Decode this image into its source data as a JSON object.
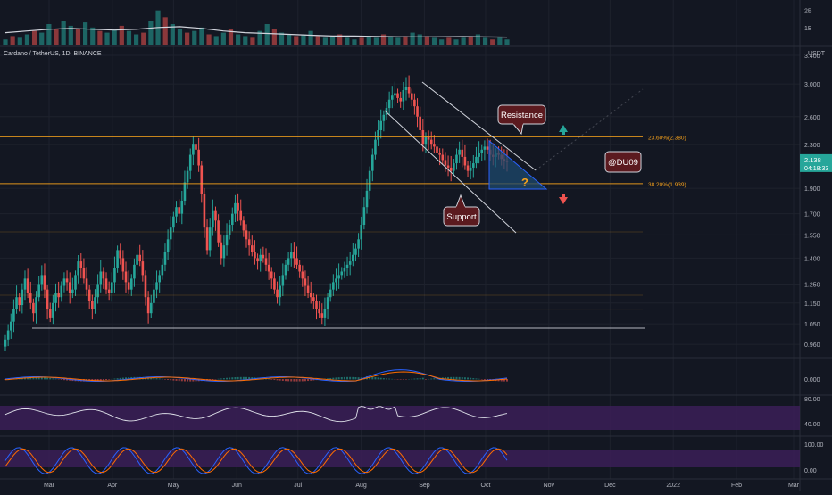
{
  "header": {
    "symbol_title": "Cardano / TetherUS, 1D, BINANCE",
    "currency": "USDT"
  },
  "price_badge": {
    "price": "2.138",
    "countdown": "04:18:33",
    "color": "#26a69a"
  },
  "colors": {
    "up": "#26a69a",
    "down": "#ef5350",
    "fib_line": "#f7a21b",
    "support_line": "#d1d4dc",
    "channel": "#d1d4dc",
    "triangle_fill": "#1e4a6e",
    "triangle_edge": "#2962ff",
    "label_fill": "#5b1a1f",
    "label_border": "#d1d4dc",
    "rsi_band": "#3b1f57",
    "macd_line": "#2962ff",
    "signal_line": "#ff6d00"
  },
  "annotations": {
    "resistance": "Resistance",
    "support": "Support",
    "watermark": "@DU09",
    "question": "?"
  },
  "chart_data": [
    {
      "type": "volume",
      "ticks": [
        "2B",
        "1B"
      ],
      "values_billion": [
        0.3,
        0.5,
        0.4,
        0.6,
        0.8,
        0.7,
        1.2,
        0.9,
        1.4,
        1.1,
        0.9,
        1.3,
        1.0,
        0.8,
        0.7,
        0.9,
        1.1,
        0.8,
        0.6,
        0.7,
        1.4,
        2.0,
        1.6,
        1.2,
        0.9,
        0.7,
        0.8,
        1.0,
        0.6,
        0.5,
        0.7,
        0.9,
        0.6,
        0.5,
        0.4,
        0.8,
        1.2,
        0.9,
        0.7,
        0.6,
        0.5,
        0.6,
        0.8,
        0.5,
        0.4,
        0.5,
        0.6,
        0.4,
        0.3,
        0.4,
        0.5,
        0.4,
        0.6,
        0.5,
        0.4,
        0.5,
        0.7,
        0.6,
        0.5,
        0.4,
        0.3,
        0.4,
        0.3,
        0.4,
        0.5,
        0.6,
        0.4,
        0.3,
        0.4,
        0.3
      ],
      "ma_billion": [
        0.7,
        0.8,
        0.9,
        0.95,
        0.9,
        0.85,
        0.9,
        1.0,
        1.05,
        0.95,
        0.8,
        0.7,
        0.65,
        0.6,
        0.55,
        0.5,
        0.5,
        0.48,
        0.46,
        0.45,
        0.46,
        0.47,
        0.45,
        0.44
      ]
    },
    {
      "type": "candlestick",
      "title": "Cardano / TetherUS, 1D, BINANCE",
      "y_scale": "log",
      "ylim": [
        0.92,
        3.4
      ],
      "y_ticks": [
        "3.400",
        "3.000",
        "2.600",
        "2.300",
        "2.138",
        "1.900",
        "1.700",
        "1.550",
        "1.400",
        "1.250",
        "1.150",
        "1.050",
        "0.960"
      ],
      "y_tick_values": [
        3.4,
        3.0,
        2.6,
        2.3,
        1.9,
        1.7,
        1.55,
        1.4,
        1.25,
        1.15,
        1.05,
        0.96
      ],
      "x_ticks": [
        "Mar",
        "Apr",
        "May",
        "Jun",
        "Jul",
        "Aug",
        "Sep",
        "Oct",
        "Nov",
        "Dec",
        "2022",
        "Feb",
        "Mar"
      ],
      "x_tick_dates": [
        "2021-03-01",
        "2021-04-01",
        "2021-05-01",
        "2021-06-01",
        "2021-07-01",
        "2021-08-01",
        "2021-09-01",
        "2021-10-01",
        "2021-11-01",
        "2021-12-01",
        "2022-01-01",
        "2022-02-01",
        "2022-03-01"
      ],
      "first_candle_date": "2021-02-25",
      "closes": [
        0.98,
        1.02,
        1.06,
        1.12,
        1.18,
        1.14,
        1.22,
        1.28,
        1.2,
        1.15,
        1.1,
        1.18,
        1.25,
        1.3,
        1.22,
        1.12,
        1.08,
        1.15,
        1.2,
        1.18,
        1.24,
        1.28,
        1.26,
        1.2,
        1.22,
        1.3,
        1.38,
        1.34,
        1.28,
        1.22,
        1.16,
        1.12,
        1.18,
        1.25,
        1.32,
        1.28,
        1.22,
        1.2,
        1.26,
        1.34,
        1.45,
        1.4,
        1.32,
        1.26,
        1.22,
        1.28,
        1.36,
        1.42,
        1.38,
        1.3,
        1.18,
        1.1,
        1.15,
        1.22,
        1.26,
        1.3,
        1.36,
        1.44,
        1.52,
        1.6,
        1.68,
        1.75,
        1.7,
        1.8,
        1.95,
        2.05,
        2.2,
        2.3,
        2.25,
        2.1,
        1.85,
        1.6,
        1.45,
        1.6,
        1.72,
        1.65,
        1.5,
        1.4,
        1.48,
        1.55,
        1.62,
        1.7,
        1.78,
        1.72,
        1.65,
        1.58,
        1.52,
        1.48,
        1.44,
        1.4,
        1.38,
        1.42,
        1.4,
        1.36,
        1.32,
        1.28,
        1.22,
        1.18,
        1.24,
        1.3,
        1.36,
        1.4,
        1.44,
        1.4,
        1.36,
        1.32,
        1.28,
        1.24,
        1.2,
        1.18,
        1.16,
        1.12,
        1.1,
        1.08,
        1.12,
        1.18,
        1.22,
        1.26,
        1.28,
        1.3,
        1.32,
        1.34,
        1.36,
        1.38,
        1.42,
        1.46,
        1.52,
        1.62,
        1.75,
        1.88,
        2.05,
        2.2,
        2.35,
        2.45,
        2.55,
        2.62,
        2.7,
        2.8,
        2.85,
        2.88,
        2.82,
        2.78,
        2.92,
        2.96,
        2.88,
        2.8,
        2.72,
        2.6,
        2.45,
        2.3,
        2.38,
        2.35,
        2.3,
        2.28,
        2.22,
        2.2,
        2.15,
        2.1,
        2.08,
        2.05,
        2.12,
        2.2,
        2.25,
        2.18,
        2.1,
        2.05,
        2.08,
        2.12,
        2.18,
        2.22,
        2.25,
        2.28,
        2.25,
        2.2,
        2.18,
        2.22,
        2.2,
        2.16,
        2.14,
        2.138
      ],
      "macd": {
        "ticks": [
          "0.000"
        ],
        "zero": 0.0
      },
      "rsi": {
        "ticks": [
          "80.00",
          "40.00"
        ],
        "band": [
          40,
          70
        ]
      },
      "stoch": {
        "ticks": [
          "100.00",
          "0.00"
        ],
        "band": [
          20,
          80
        ]
      }
    }
  ],
  "fib_levels": [
    {
      "label": "23.60%(2.380)",
      "value": 2.38,
      "visible": true
    },
    {
      "label": "38.20%(1.939)",
      "value": 1.939,
      "visible": true
    },
    {
      "label": "",
      "value": 1.57,
      "visible": false
    },
    {
      "label": "",
      "value": 1.19,
      "visible": false
    },
    {
      "label": "",
      "value": 1.12,
      "visible": false
    }
  ],
  "support_level": 1.03
}
